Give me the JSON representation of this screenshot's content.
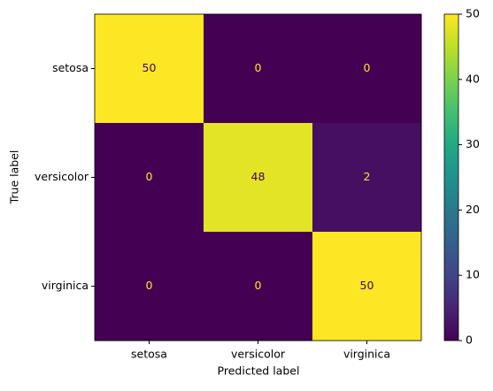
{
  "chart_data": {
    "type": "heatmap",
    "x_label": "Predicted label",
    "y_label": "True label",
    "x_categories": [
      "setosa",
      "versicolor",
      "virginica"
    ],
    "y_categories": [
      "setosa",
      "versicolor",
      "virginica"
    ],
    "values": [
      [
        50,
        0,
        0
      ],
      [
        0,
        48,
        2
      ],
      [
        0,
        0,
        50
      ]
    ],
    "colormap": "viridis",
    "zlim": [
      0,
      50
    ],
    "zticks": [
      0,
      10,
      20,
      30,
      40,
      50
    ]
  }
}
